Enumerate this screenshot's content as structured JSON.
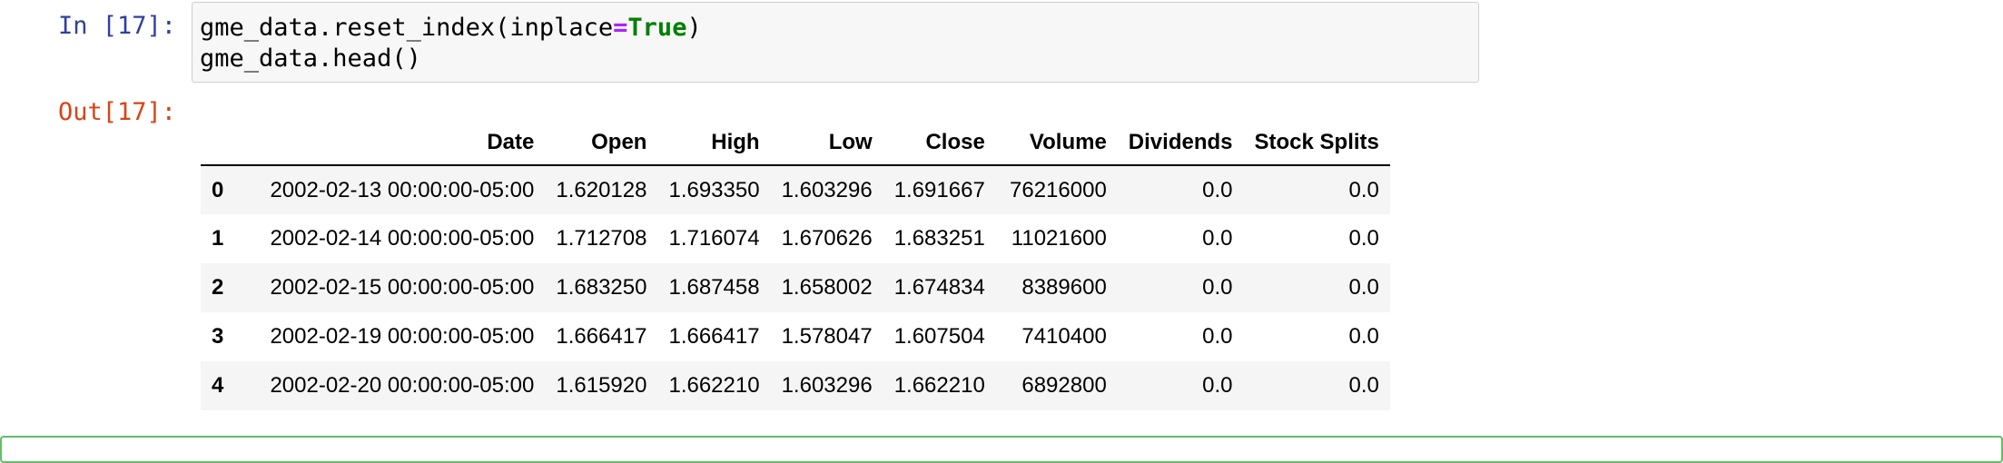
{
  "input_cell": {
    "prompt": "In [17]:",
    "code_line1": {
      "pre": "gme_data.reset_index(inplace",
      "op": "=",
      "kw": "True",
      "post": ")"
    },
    "code_line2": "gme_data.head()"
  },
  "output_cell": {
    "prompt": "Out[17]:",
    "table": {
      "columns": [
        "",
        "Date",
        "Open",
        "High",
        "Low",
        "Close",
        "Volume",
        "Dividends",
        "Stock Splits"
      ],
      "rows": [
        [
          "0",
          "2002-02-13 00:00:00-05:00",
          "1.620128",
          "1.693350",
          "1.603296",
          "1.691667",
          "76216000",
          "0.0",
          "0.0"
        ],
        [
          "1",
          "2002-02-14 00:00:00-05:00",
          "1.712708",
          "1.716074",
          "1.670626",
          "1.683251",
          "11021600",
          "0.0",
          "0.0"
        ],
        [
          "2",
          "2002-02-15 00:00:00-05:00",
          "1.683250",
          "1.687458",
          "1.658002",
          "1.674834",
          "8389600",
          "0.0",
          "0.0"
        ],
        [
          "3",
          "2002-02-19 00:00:00-05:00",
          "1.666417",
          "1.666417",
          "1.578047",
          "1.607504",
          "7410400",
          "0.0",
          "0.0"
        ],
        [
          "4",
          "2002-02-20 00:00:00-05:00",
          "1.615920",
          "1.662210",
          "1.603296",
          "1.662210",
          "6892800",
          "0.0",
          "0.0"
        ]
      ]
    }
  },
  "colors": {
    "in_prompt": "#303f9f",
    "out_prompt": "#d84315",
    "keyword_true": "#008000",
    "operator": "#aa22ff",
    "selected_cell_border": "#66bb6a"
  }
}
